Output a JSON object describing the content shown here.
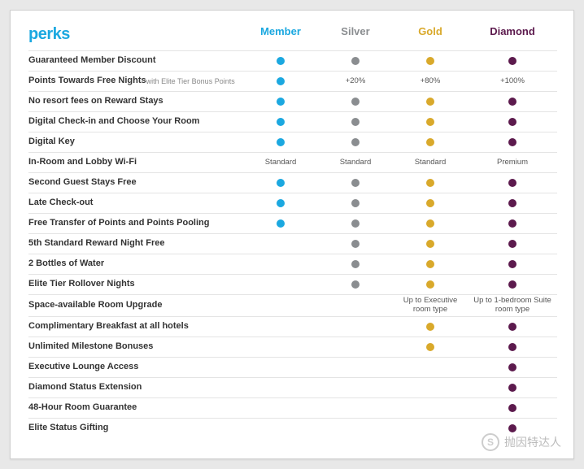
{
  "title": "perks",
  "tiers": [
    {
      "key": "member",
      "label": "Member",
      "color": "#1ba8e0"
    },
    {
      "key": "silver",
      "label": "Silver",
      "color": "#8a8d90"
    },
    {
      "key": "gold",
      "label": "Gold",
      "color": "#d9a92b"
    },
    {
      "key": "diamond",
      "label": "Diamond",
      "color": "#5c1a4d"
    }
  ],
  "title_color": "#1ba8e0",
  "border_color": "#e4e4e4",
  "background": "#ffffff",
  "text_color": "#333333",
  "subtext_color": "#888888",
  "rows": [
    {
      "label": "Guaranteed Member Discount",
      "cells": {
        "member": "dot",
        "silver": "dot",
        "gold": "dot",
        "diamond": "dot"
      }
    },
    {
      "label": "Points Towards Free Nights",
      "sub": "with Elite Tier Bonus Points",
      "cells": {
        "member": "dot",
        "silver": "+20%",
        "gold": "+80%",
        "diamond": "+100%"
      }
    },
    {
      "label": "No resort fees on Reward Stays",
      "cells": {
        "member": "dot",
        "silver": "dot",
        "gold": "dot",
        "diamond": "dot"
      }
    },
    {
      "label": "Digital Check-in and Choose Your Room",
      "cells": {
        "member": "dot",
        "silver": "dot",
        "gold": "dot",
        "diamond": "dot"
      }
    },
    {
      "label": "Digital Key",
      "cells": {
        "member": "dot",
        "silver": "dot",
        "gold": "dot",
        "diamond": "dot"
      }
    },
    {
      "label": "In-Room and Lobby Wi-Fi",
      "cells": {
        "member": "Standard",
        "silver": "Standard",
        "gold": "Standard",
        "diamond": "Premium"
      }
    },
    {
      "label": "Second Guest Stays Free",
      "cells": {
        "member": "dot",
        "silver": "dot",
        "gold": "dot",
        "diamond": "dot"
      }
    },
    {
      "label": "Late Check-out",
      "cells": {
        "member": "dot",
        "silver": "dot",
        "gold": "dot",
        "diamond": "dot"
      }
    },
    {
      "label": "Free Transfer of Points and Points Pooling",
      "cells": {
        "member": "dot",
        "silver": "dot",
        "gold": "dot",
        "diamond": "dot"
      }
    },
    {
      "label": "5th Standard Reward Night Free",
      "cells": {
        "member": "",
        "silver": "dot",
        "gold": "dot",
        "diamond": "dot"
      }
    },
    {
      "label": "2 Bottles of Water",
      "cells": {
        "member": "",
        "silver": "dot",
        "gold": "dot",
        "diamond": "dot"
      }
    },
    {
      "label": "Elite Tier Rollover Nights",
      "cells": {
        "member": "",
        "silver": "dot",
        "gold": "dot",
        "diamond": "dot"
      }
    },
    {
      "label": "Space-available Room Upgrade",
      "cells": {
        "member": "",
        "silver": "",
        "gold": "Up to Executive room type",
        "diamond": "Up to 1-bedroom Suite room type"
      }
    },
    {
      "label": "Complimentary Breakfast at all hotels",
      "cells": {
        "member": "",
        "silver": "",
        "gold": "dot",
        "diamond": "dot"
      }
    },
    {
      "label": "Unlimited Milestone Bonuses",
      "cells": {
        "member": "",
        "silver": "",
        "gold": "dot",
        "diamond": "dot"
      }
    },
    {
      "label": "Executive Lounge Access",
      "cells": {
        "member": "",
        "silver": "",
        "gold": "",
        "diamond": "dot"
      }
    },
    {
      "label": "Diamond Status Extension",
      "cells": {
        "member": "",
        "silver": "",
        "gold": "",
        "diamond": "dot"
      }
    },
    {
      "label": "48-Hour Room Guarantee",
      "cells": {
        "member": "",
        "silver": "",
        "gold": "",
        "diamond": "dot"
      }
    },
    {
      "label": "Elite Status Gifting",
      "cells": {
        "member": "",
        "silver": "",
        "gold": "",
        "diamond": "dot"
      }
    }
  ],
  "watermark": {
    "icon": "S",
    "text": "抛因特达人"
  }
}
